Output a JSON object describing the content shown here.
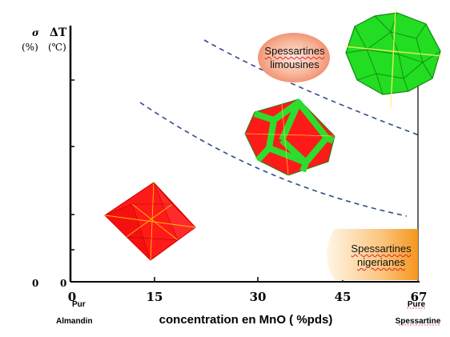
{
  "chart_data": {
    "type": "scatter",
    "title": "",
    "xlabel": "concentration en MnO ( %pds)",
    "ylabel": "",
    "y_axis_symbols": [
      "σ",
      "ΔT"
    ],
    "y_axis_units": [
      "(%)",
      "(℃)"
    ],
    "y_origin_labels": [
      "0",
      "0"
    ],
    "xlim": [
      0,
      67
    ],
    "x_ticks": [
      0,
      15,
      30,
      45,
      67
    ],
    "x_tick_labels": [
      "0",
      "15",
      "30",
      "45",
      "67"
    ],
    "endpoint_labels": {
      "left": [
        "Pur",
        "Almandin"
      ],
      "right": [
        "Pure",
        "Spessartine"
      ]
    },
    "region_labels": [
      {
        "text": [
          "Spessartines",
          "limousines"
        ],
        "color": "#f4a07a"
      },
      {
        "text": [
          "Spessartines",
          "nigerianes"
        ],
        "color": "#f7a23a"
      }
    ],
    "dashed_curves": [
      "upper",
      "lower"
    ],
    "crystals": [
      {
        "x": 15,
        "shape": "octahedral",
        "color": "#ff1a1a"
      },
      {
        "x": 36,
        "shape": "dodecahedral",
        "color": "#ff1a1a",
        "edges": "#2ddc2d"
      },
      {
        "x": 60,
        "shape": "dodecahedral",
        "color": "#22dd22"
      }
    ],
    "colors": {
      "axis": "#000000",
      "dash": "#2e4e8c",
      "red": "#ff1a1a",
      "green": "#22dd22"
    }
  }
}
